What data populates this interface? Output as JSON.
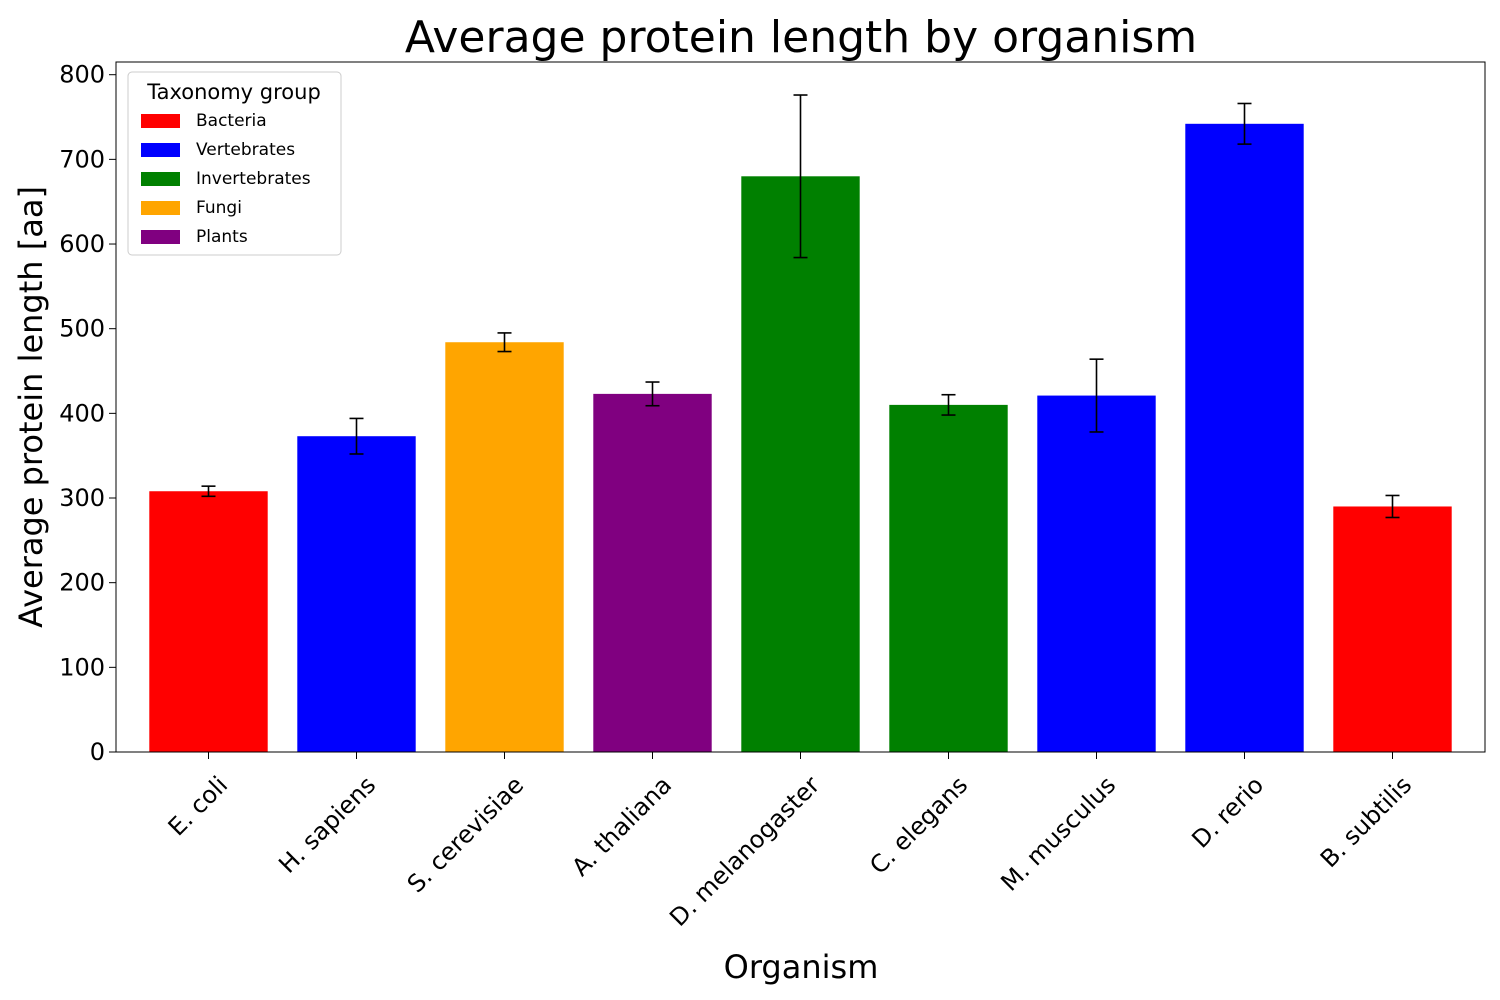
{
  "chart_data": {
    "type": "bar",
    "title": "Average protein length by organism",
    "xlabel": "Organism",
    "ylabel": "Average protein length [aa]",
    "ylim": [
      0,
      815
    ],
    "yticks": [
      0,
      100,
      200,
      300,
      400,
      500,
      600,
      700,
      800
    ],
    "categories": [
      "E. coli",
      "H. sapiens",
      "S. cerevisiae",
      "A. thaliana",
      "D. melanogaster",
      "C. elegans",
      "M. musculus",
      "D. rerio",
      "B. subtilis"
    ],
    "values": [
      308,
      373,
      484,
      423,
      680,
      410,
      421,
      742,
      290
    ],
    "errors": [
      6,
      21,
      11,
      14,
      96,
      12,
      43,
      24,
      13
    ],
    "groups": [
      "Bacteria",
      "Vertebrates",
      "Fungi",
      "Plants",
      "Invertebrates",
      "Invertebrates",
      "Vertebrates",
      "Vertebrates",
      "Bacteria"
    ],
    "legend": {
      "title": "Taxonomy group",
      "position": "top-left",
      "entries": [
        {
          "label": "Bacteria",
          "color": "#ff0000"
        },
        {
          "label": "Vertebrates",
          "color": "#0000ff"
        },
        {
          "label": "Invertebrates",
          "color": "#008000"
        },
        {
          "label": "Fungi",
          "color": "#ffa500"
        },
        {
          "label": "Plants",
          "color": "#800080"
        }
      ]
    },
    "grid": false
  }
}
